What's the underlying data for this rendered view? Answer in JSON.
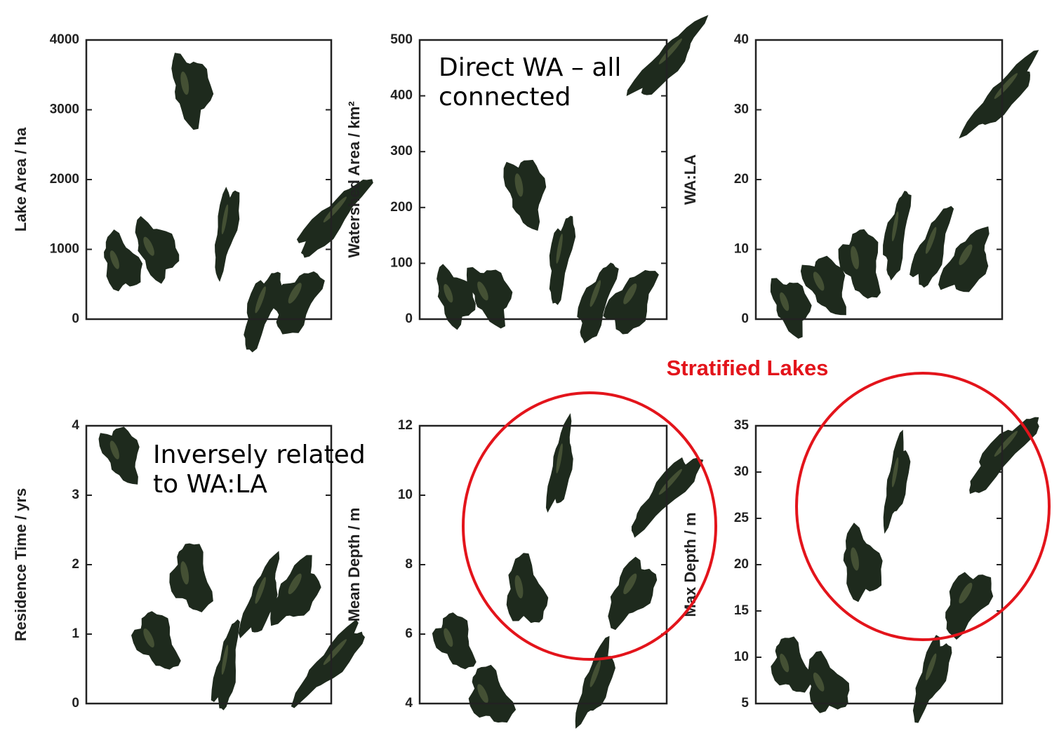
{
  "annotation": "Stratified Lakes",
  "chart_data": [
    {
      "type": "scatter",
      "ylabel": "Lake Area / ha",
      "x": [
        1,
        2,
        3,
        4,
        5,
        6,
        7
      ],
      "y": [
        800,
        1000,
        3300,
        1300,
        150,
        250,
        1430
      ],
      "xlim": [
        0,
        7
      ],
      "ylim": [
        0,
        4000
      ],
      "yticks": [
        0,
        1000,
        2000,
        3000,
        4000
      ],
      "color": "#1e2a1d"
    },
    {
      "type": "scatter",
      "ylabel": "Watershed Area / km²",
      "annotation": [
        "Direct WA – all",
        "connected"
      ],
      "x": [
        1,
        2,
        3,
        4,
        5,
        6,
        7
      ],
      "y": [
        40,
        45,
        230,
        110,
        30,
        30,
        462
      ],
      "xlim": [
        0,
        7
      ],
      "ylim": [
        0,
        500
      ],
      "yticks": [
        0,
        100,
        200,
        300,
        400,
        500
      ],
      "color": "#1e2a1d"
    },
    {
      "type": "scatter",
      "ylabel": "WA:LA",
      "x": [
        1,
        2,
        3,
        4,
        5,
        6,
        7
      ],
      "y": [
        2,
        5,
        8,
        12,
        10,
        8,
        32
      ],
      "xlim": [
        0,
        7
      ],
      "ylim": [
        0,
        40
      ],
      "yticks": [
        0,
        10,
        20,
        30,
        40
      ],
      "color": "#1e2a1d"
    },
    {
      "type": "scatter",
      "ylabel": "Residence Time / yrs",
      "annotation": [
        "Inversely related",
        "to WA:LA"
      ],
      "x": [
        1,
        2,
        3,
        4,
        5,
        6,
        7
      ],
      "y": [
        3.6,
        0.9,
        1.8,
        0.5,
        1.5,
        1.6,
        0.6
      ],
      "xlim": [
        0,
        7
      ],
      "ylim": [
        0,
        4
      ],
      "yticks": [
        0,
        1,
        2,
        3,
        4
      ],
      "color": "#1e2a1d"
    },
    {
      "type": "scatter",
      "ylabel": "Mean Depth / m",
      "x": [
        1,
        2,
        3,
        4,
        5,
        6,
        7
      ],
      "y": [
        5.8,
        4.2,
        7.2,
        10.8,
        4.6,
        7.2,
        10.1
      ],
      "xlim": [
        0,
        7
      ],
      "ylim": [
        4,
        12
      ],
      "yticks": [
        4,
        6,
        8,
        10,
        12
      ],
      "color": "#1e2a1d"
    },
    {
      "type": "scatter",
      "ylabel": "Max Depth / m",
      "x": [
        1,
        2,
        3,
        4,
        5,
        6,
        7
      ],
      "y": [
        9,
        7,
        20,
        29,
        8,
        16,
        32
      ],
      "xlim": [
        0,
        7
      ],
      "ylim": [
        5,
        35
      ],
      "yticks": [
        5,
        10,
        15,
        20,
        25,
        30,
        35
      ],
      "color": "#1e2a1d"
    }
  ]
}
